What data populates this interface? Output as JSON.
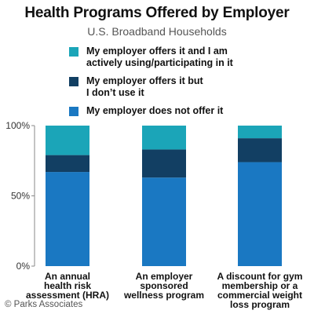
{
  "title": "Health Programs Offered by Employer",
  "subtitle": "U.S. Broadband Households",
  "source": "© Parks Associates",
  "colors": {
    "using": "#1ba5b8",
    "not_used": "#123f63",
    "not_offered": "#1a78c2",
    "axis": "#888888"
  },
  "legend": [
    {
      "label_lines": [
        "My employer offers it and I am",
        "actively using/participating in it"
      ],
      "color_key": "using"
    },
    {
      "label_lines": [
        "My employer offers it but",
        "I don’t use it"
      ],
      "color_key": "not_used"
    },
    {
      "label_lines": [
        "My employer does not offer it"
      ],
      "color_key": "not_offered"
    }
  ],
  "chart_data": {
    "type": "bar",
    "stacked": true,
    "categories": [
      [
        "An annual",
        "health risk",
        "assessment (HRA)"
      ],
      [
        "An employer",
        "sponsored",
        "wellness program"
      ],
      [
        "A discount for gym",
        "membership or a",
        "commercial weight",
        "loss program"
      ]
    ],
    "series": [
      {
        "name": "My employer does not offer it",
        "color_key": "not_offered",
        "values": [
          67,
          63,
          74
        ]
      },
      {
        "name": "My employer offers it but I don’t use it",
        "color_key": "not_used",
        "values": [
          12,
          20,
          17
        ]
      },
      {
        "name": "My employer offers it and I am actively using/participating in it",
        "color_key": "using",
        "values": [
          21,
          17,
          9
        ]
      }
    ],
    "y_ticks": [
      "0%",
      "50%",
      "100%"
    ],
    "y_tick_values": [
      0,
      50,
      100
    ],
    "ylim": [
      0,
      100
    ],
    "xlabel": "",
    "ylabel": "",
    "grid": false,
    "legend_position": "top"
  }
}
